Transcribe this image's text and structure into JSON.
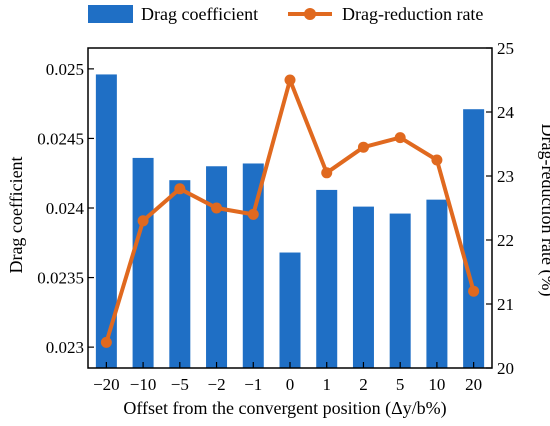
{
  "chart_data": {
    "type": "bar+line",
    "categories": [
      "−20",
      "−10",
      "−5",
      "−2",
      "−1",
      "0",
      "1",
      "2",
      "5",
      "10",
      "20"
    ],
    "series": [
      {
        "name": "Drag coefficient",
        "kind": "bar",
        "axis": "left",
        "color": "#1f6fc5",
        "values": [
          0.02496,
          0.02436,
          0.0242,
          0.0243,
          0.02432,
          0.02368,
          0.02413,
          0.02401,
          0.02396,
          0.02406,
          0.02471
        ]
      },
      {
        "name": "Drag-reduction rate",
        "kind": "line",
        "axis": "right",
        "color": "#e0691f",
        "values": [
          20.4,
          22.3,
          22.8,
          22.5,
          22.4,
          24.5,
          23.05,
          23.45,
          23.6,
          23.25,
          21.2
        ]
      }
    ],
    "xlabel": "Offset from the convergent position (Δy/b%)",
    "ylabel_left": "Drag coefficient",
    "ylabel_right": "Drag-reduction rate (%)",
    "ylim_left": [
      0.02285,
      0.02515
    ],
    "ylim_right": [
      20,
      25
    ],
    "yticks_left": [
      {
        "value": 0.023,
        "label": "0.023"
      },
      {
        "value": 0.0235,
        "label": "0.0235"
      },
      {
        "value": 0.024,
        "label": "0.024"
      },
      {
        "value": 0.0245,
        "label": "0.0245"
      },
      {
        "value": 0.025,
        "label": "0.025"
      }
    ],
    "yticks_right": [
      {
        "value": 20,
        "label": "20"
      },
      {
        "value": 21,
        "label": "21"
      },
      {
        "value": 22,
        "label": "22"
      },
      {
        "value": 23,
        "label": "23"
      },
      {
        "value": 24,
        "label": "24"
      },
      {
        "value": 25,
        "label": "25"
      }
    ],
    "legend_position": "top",
    "grid": false
  }
}
